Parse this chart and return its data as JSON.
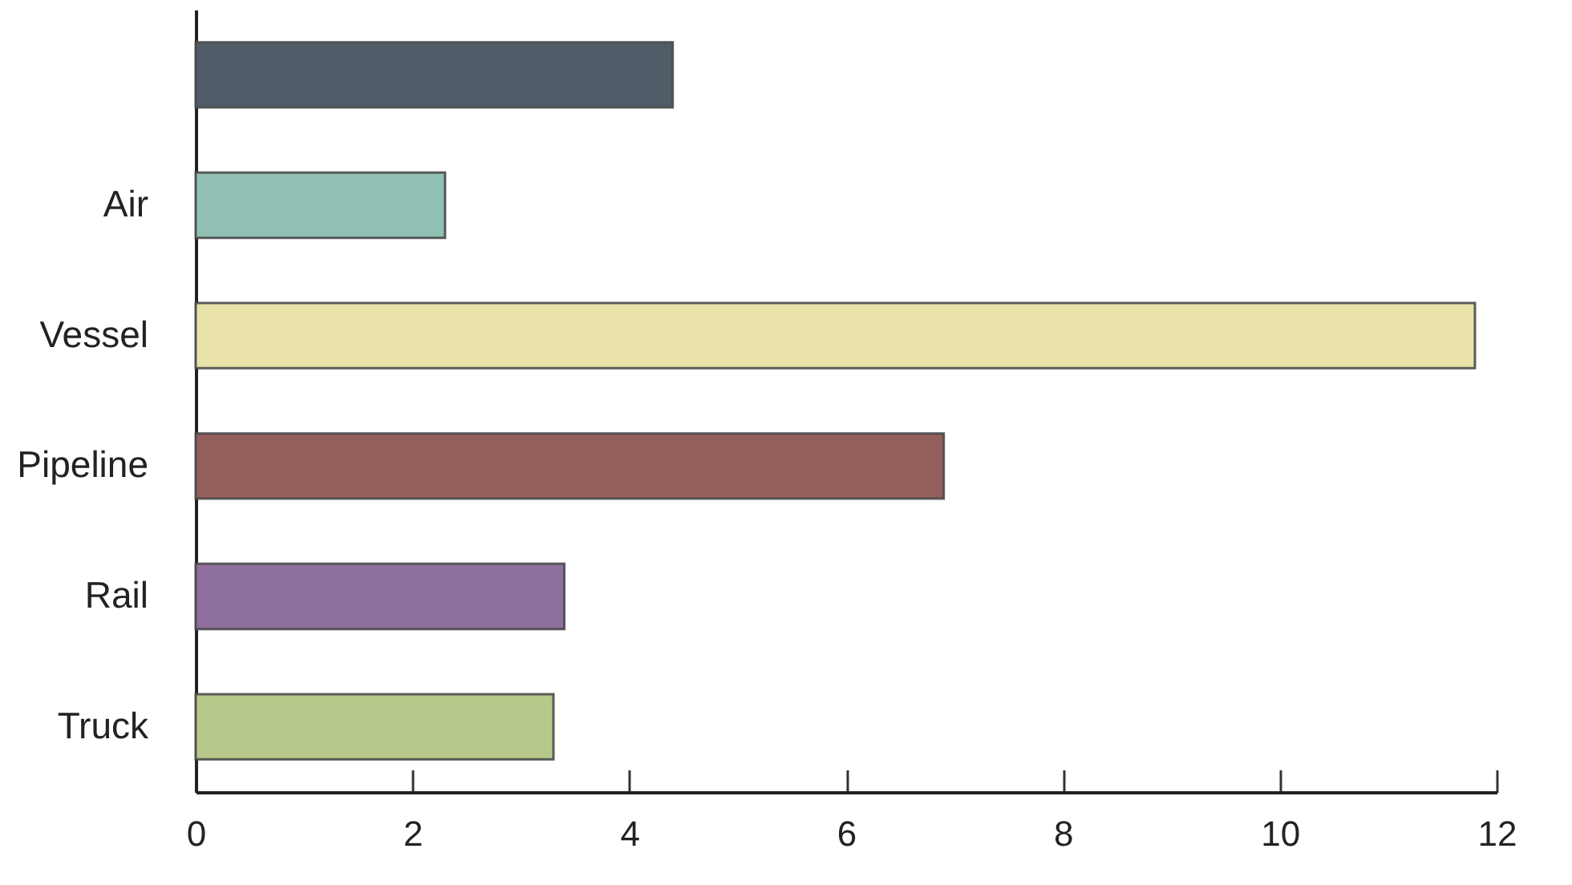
{
  "chart_data": {
    "type": "bar",
    "orientation": "horizontal",
    "categories": [
      null,
      "Air",
      "Vessel",
      "Pipeline",
      "Rail",
      "Truck"
    ],
    "values": [
      4.4,
      2.3,
      11.8,
      6.9,
      3.4,
      3.3
    ],
    "colors": [
      "#525c69",
      "#8fc0b3",
      "#e8e2a9",
      "#935f5b",
      "#8f6f9d",
      "#b6c98a"
    ],
    "xlim": [
      0,
      12
    ],
    "xticks": [
      0,
      2,
      4,
      6,
      8,
      10,
      12
    ]
  }
}
